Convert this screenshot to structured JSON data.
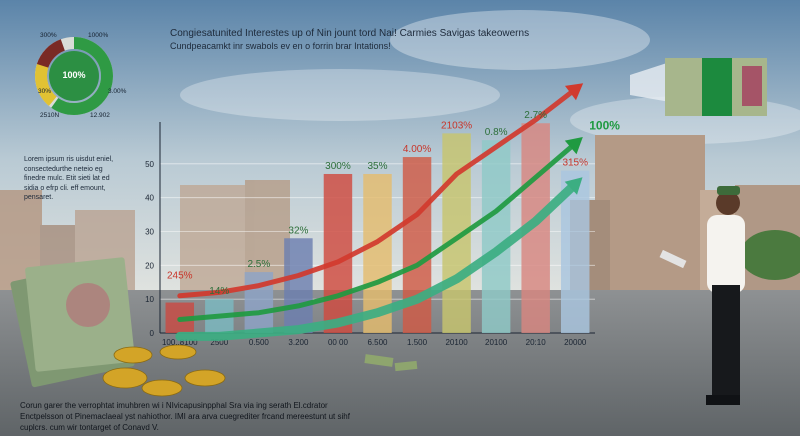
{
  "headline": "Congiesatunited Interestes up of Nin jount tord Nai! Carmies Savigas takeowerns",
  "subline": "Cundpeacamkt inr swabols ev en o forrin brar Intations!",
  "side_text": "Lorem ipsum ris uisdut eniel, consectedurthe neteio eg finedre mulc. Etit sieti lat ed sidia o efrp cli. eff emount, pensaret.",
  "caption": "Corun garer the verrophtat imuhbren wi i NIvicapusinpphal Sra via ing serath El.cdrator Enctpelsson ot Pinemaclaeal yst nahiothor. IMI ara arva cuegrediter frcand mereestunt ut sihf cuplcrs. cum wir tontarget of Conavd V.",
  "donut": {
    "center_label": "100%",
    "labels": [
      "300%",
      "1000%",
      "30%",
      "3.00%",
      "2510N",
      "12.902"
    ],
    "colors": [
      "#2f9a44",
      "#e1c233",
      "#7a2a25",
      "#b8bdbc"
    ]
  },
  "chart_data": {
    "type": "bar",
    "categories": [
      "100..8100",
      "2500",
      "0.500",
      "3.200",
      "00 00",
      "6.500",
      "1.500",
      "20100",
      "20100",
      "20:10",
      "20000"
    ],
    "values": [
      9,
      10,
      18,
      28,
      47,
      47,
      52,
      59,
      57,
      62,
      48
    ],
    "bar_labels": [
      "245%",
      "14%",
      "2.5%",
      "32%",
      "300%",
      "35%",
      "4.00%",
      "2103%",
      "0.8%",
      "2.7%",
      "315%"
    ],
    "bar_colors": [
      "#c94b43",
      "#7bb9c1",
      "#8ea3c7",
      "#6d7fb0",
      "#cf4a3f",
      "#e4bc6e",
      "#d05a46",
      "#c7c46e",
      "#8fc9c7",
      "#d88680",
      "#a9c6df"
    ],
    "y_ticks": [
      0,
      10,
      20,
      30,
      40,
      50
    ],
    "ylim": [
      0,
      60
    ],
    "trend_lines": [
      {
        "name": "red",
        "color": "#d13a2e",
        "values": [
          11,
          12,
          14,
          17,
          21,
          27,
          35,
          47,
          55,
          63,
          72
        ]
      },
      {
        "name": "green",
        "color": "#1f9a41",
        "values": [
          4,
          5,
          6,
          8,
          11,
          15,
          20,
          28,
          36,
          46,
          56
        ]
      },
      {
        "name": "teal",
        "color": "#3cae82",
        "values": [
          -1,
          -1,
          0,
          1,
          3,
          6,
          10,
          16,
          24,
          33,
          44
        ]
      }
    ],
    "end_label": "100%",
    "grid": true
  }
}
